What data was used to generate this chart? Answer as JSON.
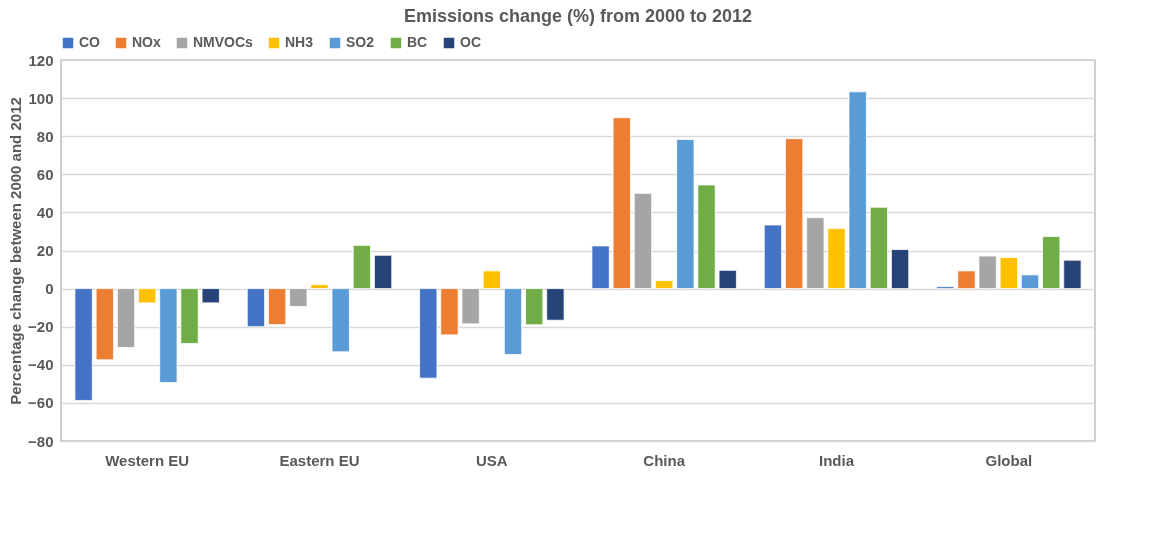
{
  "chart_data": {
    "type": "bar",
    "title": "Emissions change (%) from 2000 to 2012",
    "ylabel": "Percentage change between 2000 and 2012",
    "categories": [
      "Western EU",
      "Eastern EU",
      "USA",
      "China",
      "India",
      "Global"
    ],
    "series": [
      {
        "name": "CO",
        "color": "#4472c4",
        "values": [
          -58.7,
          -20,
          -47,
          22.4,
          33.4,
          1
        ]
      },
      {
        "name": "NOx",
        "color": "#ed7d31",
        "values": [
          -37.4,
          -18.9,
          -24.3,
          89.7,
          78.7,
          9.3
        ]
      },
      {
        "name": "NMVOCs",
        "color": "#a5a5a5",
        "values": [
          -30.9,
          -9.4,
          -18.5,
          50,
          37.2,
          17.1
        ]
      },
      {
        "name": "NH3",
        "color": "#ffc000",
        "values": [
          -7.5,
          2.1,
          9.3,
          4.2,
          31.5,
          16.3
        ]
      },
      {
        "name": "SO2",
        "color": "#5b9bd5",
        "values": [
          -49.3,
          -33.2,
          -34.6,
          78.3,
          103.3,
          7.2
        ]
      },
      {
        "name": "BC",
        "color": "#70ad47",
        "values": [
          -28.8,
          22.7,
          -19,
          54.4,
          42.7,
          27.3
        ]
      },
      {
        "name": "OC",
        "color": "#264478",
        "values": [
          -7.5,
          17.5,
          -16.6,
          9.6,
          20.5,
          14.9
        ]
      }
    ],
    "ylim": [
      -80,
      120
    ],
    "yticks": [
      -80,
      -60,
      -40,
      -20,
      0,
      20,
      40,
      60,
      80,
      100,
      120
    ],
    "grid": "y",
    "legend": "top"
  }
}
